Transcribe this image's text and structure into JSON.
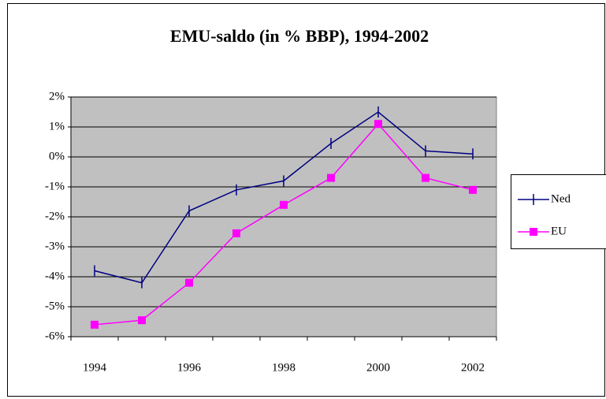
{
  "chart_data": {
    "type": "line",
    "title": "EMU-saldo (in % BBP), 1994-2002",
    "categories": [
      "1994",
      null,
      "1996",
      null,
      "1998",
      null,
      "2000",
      null,
      "2002"
    ],
    "series": [
      {
        "name": "Ned",
        "color": "#000080",
        "values": [
          -3.8,
          -4.2,
          -1.8,
          -1.1,
          -0.8,
          0.45,
          1.5,
          0.2,
          0.1
        ]
      },
      {
        "name": "EU",
        "color": "#ff00ff",
        "values": [
          -5.6,
          -5.45,
          -4.2,
          -2.55,
          -1.6,
          -0.7,
          1.1,
          -0.7,
          -1.1
        ]
      }
    ],
    "ylim": [
      -6,
      2
    ],
    "yticks": [
      {
        "value": -6,
        "label": "-6%"
      },
      {
        "value": -5,
        "label": "-5%"
      },
      {
        "value": -4,
        "label": "-4%"
      },
      {
        "value": -3,
        "label": "-3%"
      },
      {
        "value": -2,
        "label": "-2%"
      },
      {
        "value": -1,
        "label": "-1%"
      },
      {
        "value": 0,
        "label": "0%"
      },
      {
        "value": 1,
        "label": "1%"
      },
      {
        "value": 2,
        "label": "2%"
      }
    ],
    "grid": true,
    "legend": "right"
  }
}
